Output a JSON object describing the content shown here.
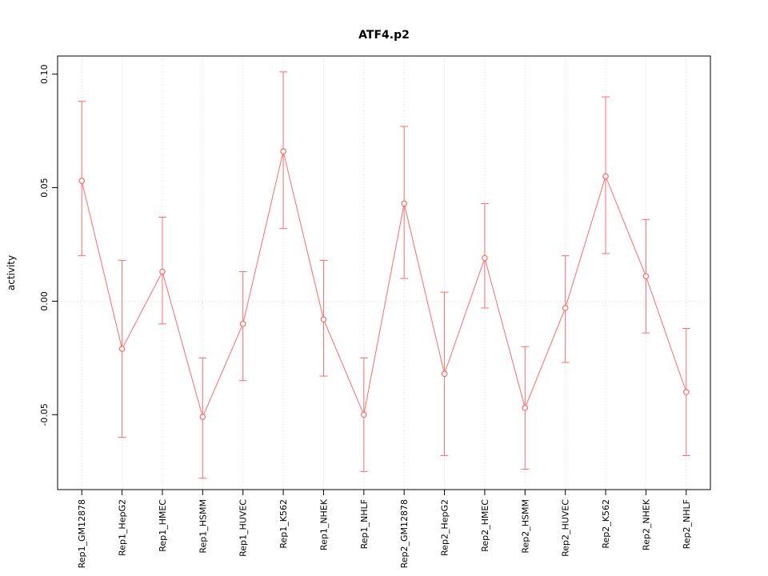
{
  "figure": {
    "background": "#ffffff"
  },
  "chart_data": {
    "type": "line",
    "title": "ATF4.p2",
    "xlabel": "",
    "ylabel": "activity",
    "legend": "none",
    "grid": "dotted vertical line at each category and dotted horizontal line at y=0",
    "categories": [
      "Rep1_GM12878",
      "Rep1_HepG2",
      "Rep1_HMEC",
      "Rep1_HSMM",
      "Rep1_HUVEC",
      "Rep1_K562",
      "Rep1_NHEK",
      "Rep1_NHLF",
      "Rep2_GM12878",
      "Rep2_HepG2",
      "Rep2_HMEC",
      "Rep2_HSMM",
      "Rep2_HUVEC",
      "Rep2_K562",
      "Rep2_NHEK",
      "Rep2_NHLF"
    ],
    "values": [
      0.053,
      -0.021,
      0.013,
      -0.051,
      -0.01,
      0.066,
      -0.008,
      -0.05,
      0.043,
      -0.032,
      0.019,
      -0.047,
      -0.003,
      0.055,
      0.011,
      -0.04
    ],
    "error_high": [
      0.088,
      0.018,
      0.037,
      -0.025,
      0.013,
      0.101,
      0.018,
      -0.025,
      0.077,
      0.004,
      0.043,
      -0.02,
      0.02,
      0.09,
      0.036,
      -0.012
    ],
    "error_low": [
      0.02,
      -0.06,
      -0.01,
      -0.078,
      -0.035,
      0.032,
      -0.033,
      -0.075,
      0.01,
      -0.068,
      -0.003,
      -0.074,
      -0.027,
      0.021,
      -0.014,
      -0.068
    ],
    "ylim": [
      -0.083,
      0.108
    ],
    "y_ticks": [
      -0.05,
      0.0,
      0.05,
      0.1
    ],
    "y_tick_labels": [
      "-0.05",
      "0.00",
      "0.05",
      "0.10"
    ],
    "colors": {
      "series": "#ff6b6b",
      "grid": "#d9d9d9",
      "axis": "#000000",
      "tick_text": "#000000"
    },
    "marker": "open-circle"
  }
}
